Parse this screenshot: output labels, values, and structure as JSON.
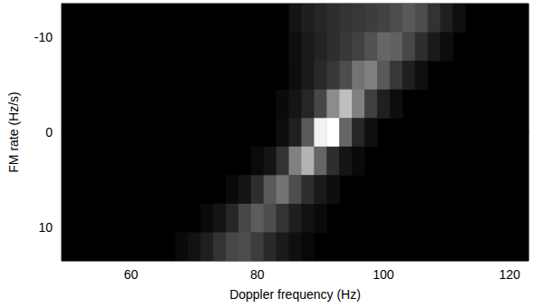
{
  "chart_data": {
    "type": "heatmap",
    "x_label": "Doppler frequency (Hz)",
    "y_label": "FM rate (Hz/s)",
    "xlim": [
      49,
      123
    ],
    "xticks": [
      60,
      80,
      100,
      120
    ],
    "ylim": [
      -13.5,
      13.5
    ],
    "yticks": [
      -10,
      0,
      10
    ],
    "zlim": [
      0,
      1
    ],
    "grid": false,
    "cells": [
      [
        86,
        -12,
        0.08
      ],
      [
        88,
        -12,
        0.12
      ],
      [
        90,
        -12,
        0.15
      ],
      [
        92,
        -12,
        0.18
      ],
      [
        94,
        -12,
        0.2
      ],
      [
        96,
        -12,
        0.22
      ],
      [
        98,
        -12,
        0.24
      ],
      [
        100,
        -12,
        0.26
      ],
      [
        102,
        -12,
        0.3
      ],
      [
        104,
        -12,
        0.35
      ],
      [
        106,
        -12,
        0.3
      ],
      [
        108,
        -12,
        0.2
      ],
      [
        110,
        -12,
        0.12
      ],
      [
        112,
        -12,
        0.06
      ],
      [
        86,
        -9,
        0.06
      ],
      [
        88,
        -9,
        0.1
      ],
      [
        90,
        -9,
        0.14
      ],
      [
        92,
        -9,
        0.18
      ],
      [
        94,
        -9,
        0.22
      ],
      [
        96,
        -9,
        0.26
      ],
      [
        98,
        -9,
        0.32
      ],
      [
        100,
        -9,
        0.4
      ],
      [
        102,
        -9,
        0.38
      ],
      [
        104,
        -9,
        0.28
      ],
      [
        106,
        -9,
        0.18
      ],
      [
        108,
        -9,
        0.1
      ],
      [
        110,
        -9,
        0.05
      ],
      [
        86,
        -6,
        0.05
      ],
      [
        88,
        -6,
        0.1
      ],
      [
        90,
        -6,
        0.16
      ],
      [
        92,
        -6,
        0.22
      ],
      [
        94,
        -6,
        0.3
      ],
      [
        96,
        -6,
        0.45
      ],
      [
        98,
        -6,
        0.5
      ],
      [
        100,
        -6,
        0.35
      ],
      [
        102,
        -6,
        0.22
      ],
      [
        104,
        -6,
        0.12
      ],
      [
        106,
        -6,
        0.06
      ],
      [
        84,
        -3,
        0.04
      ],
      [
        86,
        -3,
        0.08
      ],
      [
        88,
        -3,
        0.15
      ],
      [
        90,
        -3,
        0.28
      ],
      [
        92,
        -3,
        0.55
      ],
      [
        94,
        -3,
        0.75
      ],
      [
        96,
        -3,
        0.5
      ],
      [
        98,
        -3,
        0.25
      ],
      [
        100,
        -3,
        0.12
      ],
      [
        102,
        -3,
        0.05
      ],
      [
        84,
        0,
        0.05
      ],
      [
        86,
        0,
        0.12
      ],
      [
        88,
        0,
        0.35
      ],
      [
        90,
        0,
        0.95
      ],
      [
        92,
        0,
        1.0
      ],
      [
        94,
        0,
        0.4
      ],
      [
        96,
        0,
        0.15
      ],
      [
        98,
        0,
        0.06
      ],
      [
        80,
        3,
        0.04
      ],
      [
        82,
        3,
        0.08
      ],
      [
        84,
        3,
        0.2
      ],
      [
        86,
        3,
        0.5
      ],
      [
        88,
        3,
        0.7
      ],
      [
        90,
        3,
        0.4
      ],
      [
        92,
        3,
        0.18
      ],
      [
        94,
        3,
        0.08
      ],
      [
        96,
        3,
        0.04
      ],
      [
        76,
        6,
        0.04
      ],
      [
        78,
        6,
        0.08
      ],
      [
        80,
        6,
        0.18
      ],
      [
        82,
        6,
        0.35
      ],
      [
        84,
        6,
        0.45
      ],
      [
        86,
        6,
        0.3
      ],
      [
        88,
        6,
        0.18
      ],
      [
        90,
        6,
        0.1
      ],
      [
        92,
        6,
        0.05
      ],
      [
        72,
        9,
        0.04
      ],
      [
        74,
        9,
        0.08
      ],
      [
        76,
        9,
        0.15
      ],
      [
        78,
        9,
        0.28
      ],
      [
        80,
        9,
        0.36
      ],
      [
        82,
        9,
        0.3
      ],
      [
        84,
        9,
        0.2
      ],
      [
        86,
        9,
        0.12
      ],
      [
        88,
        9,
        0.07
      ],
      [
        90,
        9,
        0.04
      ],
      [
        68,
        12,
        0.04
      ],
      [
        70,
        12,
        0.07
      ],
      [
        72,
        12,
        0.12
      ],
      [
        74,
        12,
        0.2
      ],
      [
        76,
        12,
        0.28
      ],
      [
        78,
        12,
        0.3
      ],
      [
        80,
        12,
        0.24
      ],
      [
        82,
        12,
        0.16
      ],
      [
        84,
        12,
        0.1
      ],
      [
        86,
        12,
        0.06
      ],
      [
        88,
        12,
        0.03
      ]
    ]
  }
}
